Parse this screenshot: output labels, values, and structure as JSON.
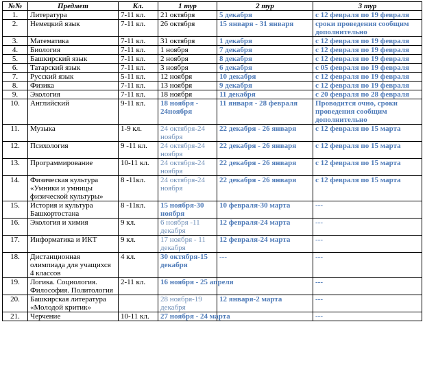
{
  "table": {
    "header": [
      "№№",
      "Предмет",
      "Кл.",
      "1 тур",
      "2 тур",
      "3 тур"
    ],
    "rows": [
      {
        "num": "1.",
        "subject": "Литература",
        "grade": "7-11 кл.",
        "t1": "21 октября",
        "t2": "5 декабря",
        "t3": "с 12 февраля по 19 февраля"
      },
      {
        "num": "2.",
        "subject": "Немецкий язык",
        "grade": "7-11 кл.",
        "t1": "26 октября",
        "t2": "15 января - 31 января",
        "t3": "сроки проведения сообщим дополнительно"
      },
      {
        "num": "3.",
        "subject": "Математика",
        "grade": "7-11 кл.",
        "t1": "31 октября",
        "t2": "1 декабря",
        "t3": "с 12 февраля по 19 февраля"
      },
      {
        "num": "4.",
        "subject": "Биология",
        "grade": "7-11 кл.",
        "t1": "1 ноября",
        "t2": "7 декабря",
        "t3": "с 12 февраля по 19 февраля"
      },
      {
        "num": "5.",
        "subject": "Башкирский язык",
        "grade": "7-11 кл.",
        "t1": "2 ноября",
        "t2": "8 декабря",
        "t3": "с 12 февраля по 19 февраля"
      },
      {
        "num": "6.",
        "subject": "Татарский язык",
        "grade": "7-11 кл.",
        "t1": "3 ноября",
        "t2": "6 декабря",
        "t3": "с 05 февраля по 19 февраля"
      },
      {
        "num": "7.",
        "subject": "Русский язык",
        "grade": "5-11 кл.",
        "t1": "12 ноября",
        "t2": "10 декабря",
        "t3": "с 12 февраля по 19 февраля"
      },
      {
        "num": "8.",
        "subject": "Физика",
        "grade": "7-11 кл.",
        "t1": "13 ноября",
        "t2": "9 декабря",
        "t3": "с 12 февраля по 19 февраля"
      },
      {
        "num": "9.",
        "subject": "Экология",
        "grade": "7-11 кл.",
        "t1": "18 ноября",
        "t2": "11 декабря",
        "t3": "с 20 февраля по 28 февраля"
      },
      {
        "num": "10.",
        "subject": "Английский",
        "grade": "9-11 кл.",
        "t1": "18 ноября - 24ноября",
        "t2": "11 января - 28 февраля",
        "t3": "Проводится очно, сроки проведения сообщим дополнительно"
      },
      {
        "num": "11.",
        "subject": "Музыка",
        "grade": "1-9 кл.",
        "t1": "24 октября-24 ноября",
        "t2": "22 декабря - 26 января",
        "t3": "с 12 февраля по 15 марта"
      },
      {
        "num": "12.",
        "subject": "Психология",
        "grade": "9 -11 кл.",
        "t1": "24 октября-24 ноября",
        "t2": "22 декабря - 26 января",
        "t3": "с 12 февраля по 15 марта"
      },
      {
        "num": "13.",
        "subject": "Программирование",
        "grade": "10-11 кл.",
        "t1": "24 октября-24 ноября",
        "t2": "22 декабря - 26 января",
        "t3": "с 12 февраля по 15 марта"
      },
      {
        "num": "14.",
        "subject": "Физическая культура «Умники и умницы физической культуры»",
        "grade": "8 -11кл.",
        "t1": "24 октября-24 ноября",
        "t2": "22 декабря - 26 января",
        "t3": "с 12 февраля по 15 марта"
      },
      {
        "num": "15.",
        "subject": "История и культура Башкортостана",
        "grade": "8 -11кл.",
        "t1": "15 ноября-30 ноября",
        "t2": "10 февраля-30 марта",
        "t3": "---"
      },
      {
        "num": "16.",
        "subject": "Экология и химия",
        "grade": "9 кл.",
        "t1": "6 ноября -11 декабря",
        "t2": "12 февраля-24 марта",
        "t3": "---"
      },
      {
        "num": "17.",
        "subject": "Информатика и ИКТ",
        "grade": "9 кл.",
        "t1": "17 ноября - 11 декабря",
        "t2": "12 февраля-24 марта",
        "t3": "---"
      },
      {
        "num": "18.",
        "subject": "Дистанционная олимпиада для учащихся 4 классов",
        "grade": "4 кл.",
        "t1": "30 октября-15 декабря",
        "t2": "---",
        "t3": "---"
      },
      {
        "num": "19.",
        "subject": "Логика. Социология. Философия. Политология",
        "grade": "2-11 кл.",
        "t1": "16 ноября - 25 апреля",
        "t3": "---"
      },
      {
        "num": "20.",
        "subject": "Башкирская литература «Молодой критик»",
        "t1": "28 ноября-19 декабря",
        "t2": "12 января-2 марта",
        "t3": "---"
      },
      {
        "num": "21.",
        "subject": "Черчение",
        "grade": "10-11 кл.",
        "t1": "27 ноября - 24 марта",
        "t3": "---"
      }
    ]
  }
}
